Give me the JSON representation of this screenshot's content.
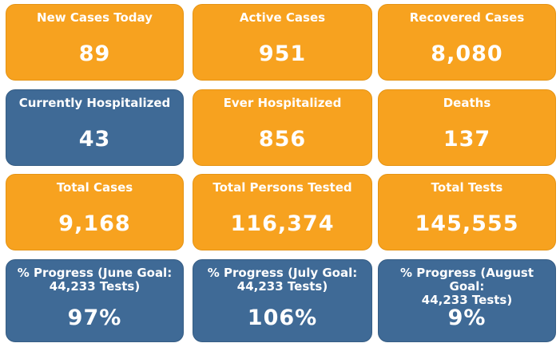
{
  "tiles": [
    {
      "label": "New Cases Today",
      "value": "89"
    },
    {
      "label": "Active Cases",
      "value": "951"
    },
    {
      "label": "Recovered Cases",
      "value": "8,080"
    },
    {
      "label": "Currently Hospitalized",
      "value": "43"
    },
    {
      "label": "Ever Hospitalized",
      "value": "856"
    },
    {
      "label": "Deaths",
      "value": "137"
    },
    {
      "label": "Total Cases",
      "value": "9,168"
    },
    {
      "label": "Total Persons Tested",
      "value": "116,374"
    },
    {
      "label": "Total Tests",
      "value": "145,555"
    },
    {
      "label": "% Progress (June Goal:\n44,233 Tests)",
      "value": "97%"
    },
    {
      "label": "% Progress (July Goal:\n44,233 Tests)",
      "value": "106%"
    },
    {
      "label": "% Progress (August Goal:\n44,233 Tests)",
      "value": "9%"
    }
  ],
  "colors": {
    "orange": "#f7a21f",
    "blue": "#3f6a96",
    "text": "#ffffff"
  }
}
